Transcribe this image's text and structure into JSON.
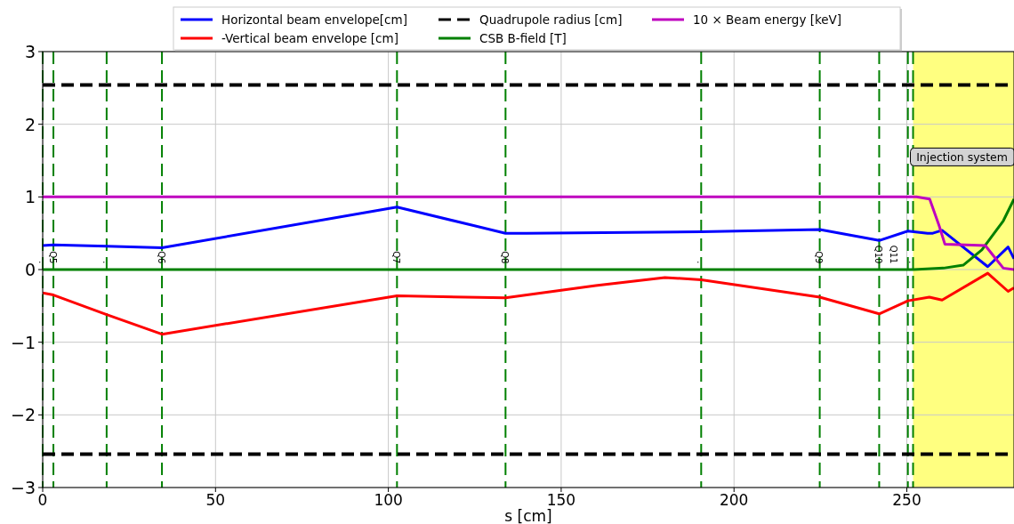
{
  "chart_data": {
    "type": "line",
    "xlabel": "s [cm]",
    "xlim": [
      0,
      281
    ],
    "ylim": [
      -3,
      3
    ],
    "xticks": [
      0,
      50,
      100,
      150,
      200,
      250
    ],
    "yticks": [
      {
        "value": -3,
        "label": "−3"
      },
      {
        "value": -2,
        "label": "−2"
      },
      {
        "value": -1,
        "label": "−1"
      },
      0,
      1,
      2,
      3
    ],
    "grid": true,
    "legend": "top",
    "line_style": "solid",
    "marker": "none",
    "series": [
      {
        "name": "Horizontal beam envelope[cm]",
        "color": "#0000ff",
        "x": [
          0,
          3.1,
          18.5,
          34.5,
          102.5,
          133.9,
          140,
          190.5,
          224.8,
          242,
          250.3,
          256,
          257.5,
          260.2,
          273.4,
          279.3,
          281
        ],
        "values": [
          0.33,
          0.34,
          0.32,
          0.3,
          0.86,
          0.5,
          0.5,
          0.52,
          0.55,
          0.4,
          0.53,
          0.5,
          0.5,
          0.54,
          0.04,
          0.31,
          0.15
        ]
      },
      {
        "name": "-Vertical beam envelope [cm]",
        "color": "#ff0000",
        "x": [
          0,
          3.1,
          18.5,
          34.5,
          102.5,
          133.9,
          160,
          180,
          190.5,
          224.8,
          242,
          250.3,
          256.5,
          260.2,
          273.4,
          279.3,
          281
        ],
        "values": [
          -0.32,
          -0.35,
          -0.62,
          -0.89,
          -0.36,
          -0.39,
          -0.22,
          -0.11,
          -0.14,
          -0.38,
          -0.61,
          -0.43,
          -0.38,
          -0.42,
          -0.05,
          -0.3,
          -0.25
        ]
      },
      {
        "name": "Quadrupole radius [cm]",
        "color": "#000000",
        "line_style": "dashed",
        "x": [
          0,
          281
        ],
        "values": [
          2.54,
          2.54
        ]
      },
      {
        "name": "CSB B-field [T]",
        "color": "#008000",
        "x": [
          0,
          252,
          260.6,
          266.3,
          271.7,
          277.9,
          281
        ],
        "values": [
          0,
          0,
          0.02,
          0.06,
          0.27,
          0.67,
          0.97
        ]
      },
      {
        "name": "10 × Beam energy [keV]",
        "color": "#bf00bf",
        "x": [
          0,
          252.8,
          256.6,
          259.3,
          261,
          272.7,
          275.2,
          277.9,
          281
        ],
        "values": [
          1,
          1,
          0.97,
          0.61,
          0.35,
          0.33,
          0.18,
          0.02,
          0
        ]
      },
      {
        "color": "#000000",
        "line_style": "dashed",
        "x": [
          0,
          281
        ],
        "values": [
          -2.54,
          -2.54
        ]
      }
    ],
    "ref_lines": [
      {
        "axis": "x",
        "value": 0,
        "label": ".",
        "color": "#008000",
        "line_style": "dashed"
      },
      {
        "axis": "x",
        "value": 3.1,
        "label": "Q5",
        "color": "#008000",
        "line_style": "dashed"
      },
      {
        "axis": "x",
        "value": 18.5,
        "label": ".",
        "color": "#008000",
        "line_style": "dashed"
      },
      {
        "axis": "x",
        "value": 34.5,
        "label": "Q6",
        "color": "#008000",
        "line_style": "dashed"
      },
      {
        "axis": "x",
        "value": 102.5,
        "label": "Q7",
        "color": "#008000",
        "line_style": "dashed"
      },
      {
        "axis": "x",
        "value": 133.9,
        "label": "Q8",
        "color": "#008000",
        "line_style": "dashed"
      },
      {
        "axis": "x",
        "value": 190.5,
        "label": ".",
        "color": "#008000",
        "line_style": "dashed"
      },
      {
        "axis": "x",
        "value": 224.8,
        "label": "Q9",
        "color": "#008000",
        "line_style": "dashed"
      },
      {
        "axis": "x",
        "value": 242,
        "label": "Q10",
        "color": "#008000",
        "line_style": "dashed"
      },
      {
        "axis": "x",
        "value": 250.3,
        "label": "Q11",
        "color": "#008000",
        "line_style": "dashed"
      },
      {
        "axis": "x",
        "value": 251.8,
        "label": ".",
        "color": "#008000",
        "line_style": "dashed"
      }
    ],
    "bands": [
      {
        "axis": "x",
        "from": 251.8,
        "to": 281,
        "label": "Injection system",
        "color": "#ffff80"
      }
    ]
  }
}
